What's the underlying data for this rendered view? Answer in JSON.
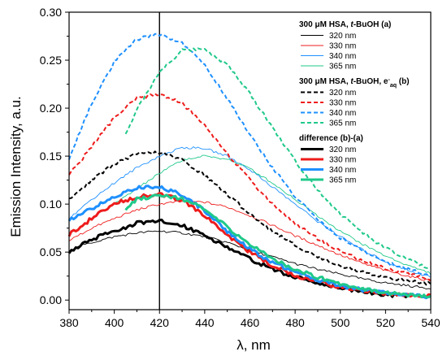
{
  "chart_data": {
    "type": "line",
    "xlabel": "λ, nm",
    "ylabel": "Emission Intensity, a.u.",
    "xlim": [
      380,
      540
    ],
    "ylim": [
      -0.01,
      0.3
    ],
    "xticks": [
      380,
      400,
      420,
      440,
      460,
      480,
      500,
      520,
      540
    ],
    "yticks": [
      "0.00",
      "0.05",
      "0.10",
      "0.15",
      "0.20",
      "0.25",
      "0.30"
    ],
    "vline_x": 420,
    "legend_position": "top-right",
    "legend_groups": [
      {
        "title": "300 μM HSA, t-BuOH (a)",
        "title_parts": [
          "300 ",
          "μ",
          "M HSA, ",
          "t",
          "-BuOH (a)"
        ],
        "style": "thin",
        "entries": [
          "320 nm",
          "330 nm",
          "340 nm",
          "365 nm"
        ]
      },
      {
        "title": "300 μM HSA, t-BuOH, e⁻aq (b)",
        "title_parts": [
          "300 ",
          "μ",
          "M HSA, ",
          "t",
          "-BuOH, e",
          "-",
          "aq",
          " (b)"
        ],
        "style": "dashed",
        "entries": [
          "320 nm",
          "330 nm",
          "340 nm",
          "365 nm"
        ]
      },
      {
        "title": "difference (b)-(a)",
        "title_parts": [
          "difference (b)-(a)"
        ],
        "style": "thick",
        "entries": [
          "320 nm",
          "330 nm",
          "340 nm",
          "365 nm"
        ]
      }
    ],
    "colors": {
      "320 nm": "#000000",
      "330 nm": "#ee1c1c",
      "340 nm": "#1e90ff",
      "365 nm": "#1fc98a"
    },
    "series": [
      {
        "group": "a",
        "name": "320 nm",
        "style": "thin",
        "x": [
          380,
          390,
          400,
          410,
          420,
          430,
          440,
          450,
          460,
          470,
          480,
          490,
          500,
          510,
          520,
          530,
          540
        ],
        "y": [
          0.052,
          0.06,
          0.066,
          0.07,
          0.072,
          0.07,
          0.066,
          0.06,
          0.052,
          0.045,
          0.038,
          0.032,
          0.027,
          0.022,
          0.018,
          0.015,
          0.012
        ]
      },
      {
        "group": "a",
        "name": "330 nm",
        "style": "thin",
        "x": [
          380,
          390,
          400,
          410,
          420,
          430,
          440,
          450,
          460,
          470,
          480,
          490,
          500,
          510,
          520,
          530,
          540
        ],
        "y": [
          0.062,
          0.075,
          0.085,
          0.094,
          0.1,
          0.103,
          0.102,
          0.097,
          0.088,
          0.078,
          0.067,
          0.057,
          0.047,
          0.038,
          0.031,
          0.025,
          0.02
        ]
      },
      {
        "group": "a",
        "name": "340 nm",
        "style": "thin",
        "x": [
          380,
          390,
          400,
          410,
          420,
          430,
          440,
          450,
          460,
          470,
          480,
          490,
          500,
          510,
          520,
          530,
          540
        ],
        "y": [
          0.085,
          0.105,
          0.122,
          0.138,
          0.15,
          0.159,
          0.158,
          0.15,
          0.136,
          0.118,
          0.1,
          0.082,
          0.066,
          0.052,
          0.04,
          0.031,
          0.024
        ]
      },
      {
        "group": "a",
        "name": "365 nm",
        "style": "thin",
        "x": [
          400,
          410,
          420,
          430,
          440,
          450,
          460,
          470,
          480,
          490,
          500,
          510,
          520,
          530,
          540
        ],
        "y": [
          0.1,
          0.116,
          0.132,
          0.146,
          0.15,
          0.147,
          0.137,
          0.122,
          0.105,
          0.088,
          0.072,
          0.058,
          0.046,
          0.036,
          0.028
        ]
      },
      {
        "group": "b",
        "name": "320 nm",
        "style": "dashed",
        "x": [
          380,
          390,
          400,
          410,
          420,
          430,
          440,
          450,
          460,
          470,
          480,
          490,
          500,
          510,
          520,
          530,
          540
        ],
        "y": [
          0.105,
          0.125,
          0.142,
          0.152,
          0.154,
          0.146,
          0.13,
          0.11,
          0.09,
          0.072,
          0.057,
          0.045,
          0.036,
          0.029,
          0.024,
          0.02,
          0.017
        ]
      },
      {
        "group": "b",
        "name": "330 nm",
        "style": "dashed",
        "x": [
          380,
          390,
          400,
          410,
          420,
          430,
          440,
          450,
          460,
          470,
          480,
          490,
          500,
          510,
          520,
          530,
          540
        ],
        "y": [
          0.13,
          0.16,
          0.19,
          0.21,
          0.215,
          0.205,
          0.182,
          0.153,
          0.125,
          0.1,
          0.08,
          0.064,
          0.051,
          0.041,
          0.033,
          0.027,
          0.022
        ]
      },
      {
        "group": "b",
        "name": "340 nm",
        "style": "dashed",
        "x": [
          380,
          390,
          400,
          410,
          420,
          430,
          440,
          450,
          460,
          470,
          480,
          490,
          500,
          510,
          520,
          530,
          540
        ],
        "y": [
          0.148,
          0.205,
          0.248,
          0.272,
          0.277,
          0.268,
          0.245,
          0.21,
          0.172,
          0.138,
          0.108,
          0.084,
          0.065,
          0.051,
          0.04,
          0.032,
          0.026
        ]
      },
      {
        "group": "b",
        "name": "365 nm",
        "style": "dashed",
        "x": [
          405,
          410,
          420,
          430,
          440,
          450,
          460,
          470,
          480,
          490,
          500,
          510,
          520,
          530,
          540
        ],
        "y": [
          0.172,
          0.198,
          0.238,
          0.26,
          0.262,
          0.245,
          0.215,
          0.18,
          0.145,
          0.115,
          0.09,
          0.07,
          0.054,
          0.042,
          0.032
        ]
      },
      {
        "group": "diff",
        "name": "320 nm",
        "style": "thick",
        "x": [
          380,
          390,
          400,
          410,
          420,
          430,
          440,
          450,
          460,
          470,
          480,
          490,
          500,
          510,
          520,
          530
        ],
        "y": [
          0.05,
          0.063,
          0.072,
          0.08,
          0.082,
          0.078,
          0.068,
          0.055,
          0.043,
          0.032,
          0.024,
          0.018,
          0.013,
          0.009,
          0.006,
          0.004
        ]
      },
      {
        "group": "diff",
        "name": "330 nm",
        "style": "thick",
        "x": [
          380,
          390,
          400,
          410,
          420,
          430,
          440,
          450,
          460,
          470,
          480,
          490,
          500,
          510,
          520,
          530,
          540
        ],
        "y": [
          0.068,
          0.085,
          0.1,
          0.108,
          0.11,
          0.104,
          0.088,
          0.068,
          0.05,
          0.036,
          0.026,
          0.019,
          0.014,
          0.01,
          0.007,
          0.005,
          0.004
        ]
      },
      {
        "group": "diff",
        "name": "340 nm",
        "style": "thick",
        "x": [
          380,
          390,
          400,
          410,
          420,
          430,
          440,
          450,
          460,
          470,
          480,
          490,
          500,
          510,
          520,
          530,
          540
        ],
        "y": [
          0.083,
          0.095,
          0.108,
          0.117,
          0.118,
          0.11,
          0.093,
          0.072,
          0.053,
          0.039,
          0.029,
          0.021,
          0.015,
          0.011,
          0.008,
          0.005,
          0.003
        ]
      },
      {
        "group": "diff",
        "name": "365 nm",
        "style": "thick",
        "x": [
          405,
          410,
          420,
          430,
          440,
          450,
          460,
          470,
          480,
          490,
          500,
          510,
          520,
          530,
          540
        ],
        "y": [
          0.095,
          0.105,
          0.11,
          0.106,
          0.094,
          0.076,
          0.058,
          0.043,
          0.032,
          0.024,
          0.017,
          0.012,
          0.008,
          0.005,
          0.003
        ]
      }
    ]
  }
}
